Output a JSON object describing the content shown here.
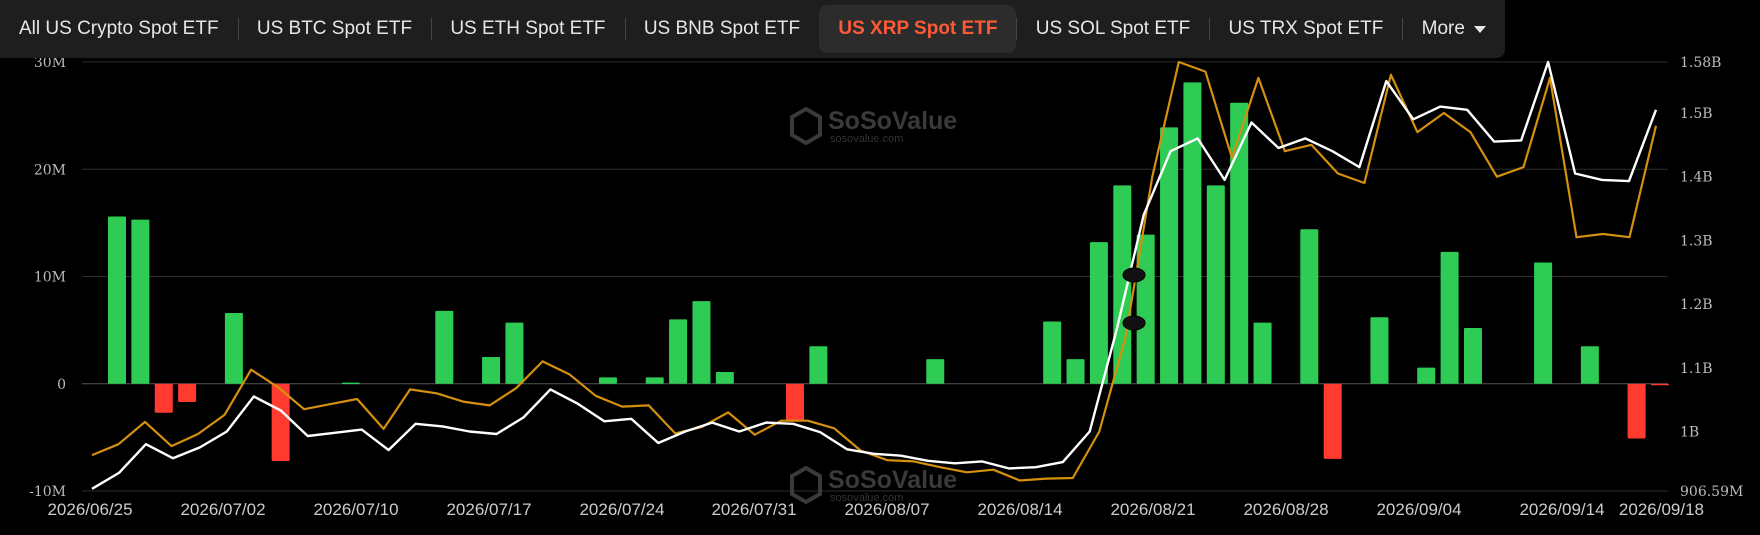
{
  "tabs": [
    {
      "label": "All US Crypto Spot ETF",
      "active": false
    },
    {
      "label": "US BTC Spot ETF",
      "active": false
    },
    {
      "label": "US ETH Spot ETF",
      "active": false
    },
    {
      "label": "US BNB Spot ETF",
      "active": false
    },
    {
      "label": "US XRP Spot ETF",
      "active": true
    },
    {
      "label": "US SOL Spot ETF",
      "active": false
    },
    {
      "label": "US TRX Spot ETF",
      "active": false
    }
  ],
  "more_label": "More",
  "watermark": {
    "name": "SoSoValue",
    "url": "sosovalue.com"
  },
  "colors": {
    "inflow": "#2ecc55",
    "outflow": "#ff3b30",
    "orange_line": "#d4900e",
    "white_line": "#ffffff",
    "active_tab": "#ff5a36"
  },
  "chart_data": {
    "type": "bar",
    "x_tick_labels": [
      "2026/06/25",
      "2026/07/02",
      "2026/07/10",
      "2026/07/17",
      "2026/07/24",
      "2026/07/31",
      "2026/08/07",
      "2026/08/14",
      "2026/08/21",
      "2026/08/28",
      "2026/09/04",
      "2026/09/14",
      "2026/09/18"
    ],
    "left_axis": {
      "ylim": [
        -10,
        30
      ],
      "ticks": [
        -10,
        0,
        10,
        20,
        30
      ],
      "tick_labels": [
        "-10M",
        "0",
        "10M",
        "20M",
        "30M"
      ]
    },
    "right_axis": {
      "ylim": [
        0.90659,
        1.58
      ],
      "ticks": [
        0.90659,
        1.0,
        1.1,
        1.2,
        1.3,
        1.4,
        1.5,
        1.58
      ],
      "tick_labels": [
        "906.59M",
        "1B",
        "1.1B",
        "1.2B",
        "1.3B",
        "1.4B",
        "1.5B",
        "1.58B"
      ]
    },
    "grid": true,
    "bars": [
      15.6,
      15.3,
      -2.7,
      -1.7,
      0,
      6.6,
      0,
      -7.2,
      0,
      0,
      0.1,
      0,
      0,
      0,
      6.8,
      0,
      2.5,
      5.7,
      0,
      0,
      0,
      0.6,
      0,
      0.6,
      6.0,
      7.7,
      1.1,
      0,
      0,
      -3.5,
      3.5,
      0,
      0,
      0,
      0,
      2.3,
      0,
      0,
      0,
      0,
      5.8,
      2.3,
      13.2,
      18.5,
      13.9,
      23.9,
      28.1,
      18.5,
      26.2,
      5.7,
      0,
      14.4,
      -7.0,
      0,
      6.2,
      0,
      1.5,
      12.3,
      5.2,
      0,
      0,
      11.3,
      0,
      3.5,
      0,
      -5.1,
      -0.1
    ],
    "series": [
      {
        "axis": "right",
        "color": "orange",
        "values": [
          0.963,
          0.98,
          1.015,
          0.977,
          0.996,
          1.026,
          1.097,
          1.07,
          1.035,
          1.043,
          1.051,
          1.004,
          1.066,
          1.06,
          1.047,
          1.041,
          1.068,
          1.11,
          1.09,
          1.056,
          1.039,
          1.041,
          0.997,
          1.007,
          1.03,
          0.995,
          1.017,
          1.017,
          1.005,
          0.97,
          0.955,
          0.953,
          0.944,
          0.936,
          0.94,
          0.923,
          0.926,
          0.927,
          1.0,
          1.15,
          1.4,
          1.58,
          1.565,
          1.43,
          1.555,
          1.44,
          1.45,
          1.405,
          1.39,
          1.56,
          1.47,
          1.5,
          1.47,
          1.4,
          1.415,
          1.555,
          1.305,
          1.31,
          1.305,
          1.48
        ]
      },
      {
        "axis": "right",
        "color": "white",
        "values": [
          0.91,
          0.935,
          0.98,
          0.958,
          0.975,
          1.0,
          1.055,
          1.033,
          0.993,
          0.998,
          1.003,
          0.971,
          1.012,
          1.008,
          1.0,
          0.996,
          1.022,
          1.066,
          1.044,
          1.016,
          1.02,
          0.982,
          1.0,
          1.014,
          1.0,
          1.014,
          1.012,
          0.999,
          0.972,
          0.965,
          0.962,
          0.954,
          0.95,
          0.953,
          0.942,
          0.944,
          0.952,
          1.0,
          1.16,
          1.34,
          1.44,
          1.46,
          1.395,
          1.485,
          1.445,
          1.46,
          1.44,
          1.415,
          1.55,
          1.49,
          1.51,
          1.505,
          1.455,
          1.457,
          1.58,
          1.405,
          1.395,
          1.393,
          1.505
        ]
      }
    ]
  }
}
